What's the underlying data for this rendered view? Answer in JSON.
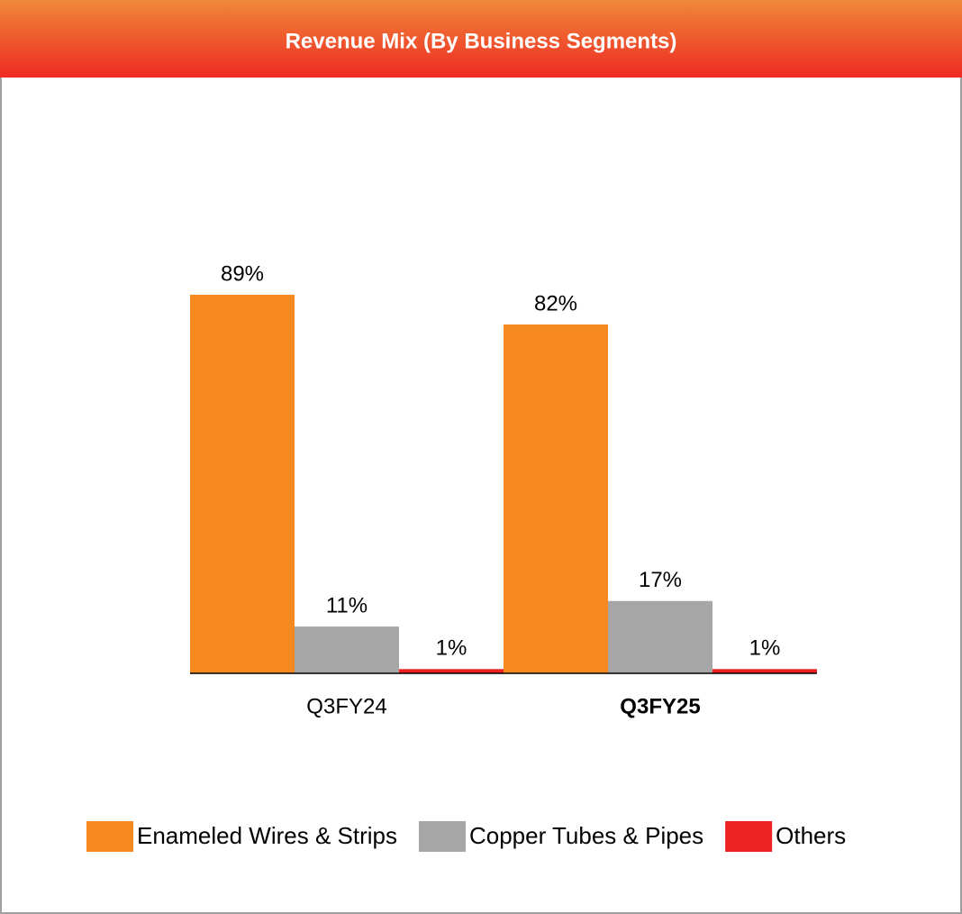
{
  "chart_data": {
    "type": "bar",
    "title": "Revenue Mix (By Business Segments)",
    "categories": [
      "Q3FY24",
      "Q3FY25"
    ],
    "series": [
      {
        "name": "Enameled Wires & Strips",
        "color": "#f5891f",
        "values": [
          89,
          82
        ],
        "value_labels": [
          "89%",
          "82%"
        ]
      },
      {
        "name": "Copper Tubes & Pipes",
        "color": "#a6a6a6",
        "values": [
          11,
          17
        ],
        "value_labels": [
          "11%",
          "17%"
        ]
      },
      {
        "name": "Others",
        "color": "#ed2024",
        "values": [
          1,
          1
        ],
        "value_labels": [
          "1%",
          "1%"
        ]
      }
    ],
    "legend": "bottom"
  }
}
